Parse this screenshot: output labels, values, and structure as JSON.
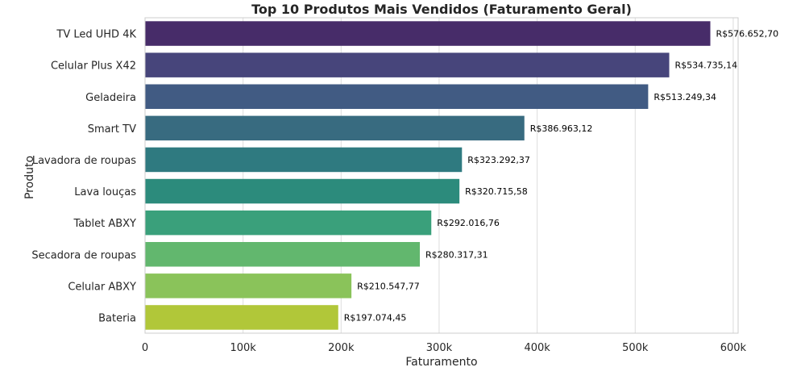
{
  "chart_data": {
    "type": "bar",
    "orientation": "horizontal",
    "title": "Top 10 Produtos Mais Vendidos (Faturamento Geral)",
    "xlabel": "Faturamento",
    "ylabel": "Produto",
    "xlim": [
      0,
      605000
    ],
    "xticks": [
      0,
      100000,
      200000,
      300000,
      400000,
      500000,
      600000
    ],
    "xtick_labels": [
      "0",
      "100k",
      "200k",
      "300k",
      "400k",
      "500k",
      "600k"
    ],
    "grid": "vertical",
    "categories": [
      "TV Led UHD 4K",
      "Celular Plus X42",
      "Geladeira",
      "Smart TV",
      "Lavadora de roupas",
      "Lava louças",
      "Tablet ABXY",
      "Secadora de roupas",
      "Celular ABXY",
      "Bateria"
    ],
    "values": [
      576652.7,
      534735.14,
      513249.34,
      386963.12,
      323292.37,
      320715.58,
      292016.76,
      280317.31,
      210547.77,
      197074.45
    ],
    "value_labels": [
      "R$576.652,70",
      "R$534.735,14",
      "R$513.249,34",
      "R$386.963,12",
      "R$323.292,37",
      "R$320.715,58",
      "R$292.016,76",
      "R$280.317,31",
      "R$210.547,77",
      "R$197.074,45"
    ],
    "colors": [
      "#472c69",
      "#47457b",
      "#415b83",
      "#386b80",
      "#2f7a80",
      "#2c8b7c",
      "#3aa07b",
      "#62b76e",
      "#8ac35a",
      "#b1c739"
    ]
  }
}
